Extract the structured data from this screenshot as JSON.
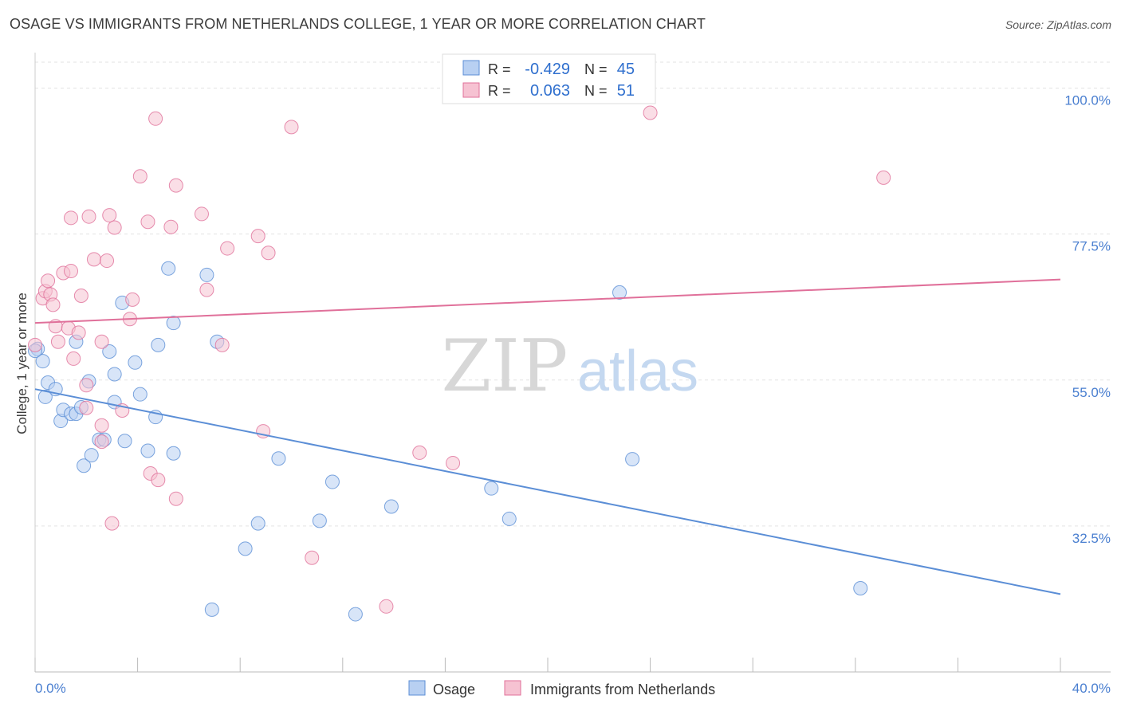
{
  "header": {
    "title": "OSAGE VS IMMIGRANTS FROM NETHERLANDS COLLEGE, 1 YEAR OR MORE CORRELATION CHART",
    "source": "Source: ZipAtlas.com"
  },
  "watermark": {
    "zip": "ZIP",
    "atlas": "atlas"
  },
  "legend_box": {
    "rows": [
      {
        "r_label": "R =",
        "r_value": "-0.429",
        "n_label": "N =",
        "n_value": "45"
      },
      {
        "r_label": "R =",
        "r_value": "0.063",
        "n_label": "N =",
        "n_value": "51"
      }
    ]
  },
  "chart_data": {
    "type": "scatter",
    "title": "OSAGE VS IMMIGRANTS FROM NETHERLANDS COLLEGE, 1 YEAR OR MORE CORRELATION CHART",
    "xlabel": "",
    "ylabel": "College, 1 year or more",
    "xlim": [
      0,
      40
    ],
    "ylim": [
      10,
      104
    ],
    "x_tick_labels": [
      "0.0%",
      "40.0%"
    ],
    "y_ticks": [
      32.5,
      55.0,
      77.5,
      100.0
    ],
    "y_tick_labels": [
      "32.5%",
      "55.0%",
      "77.5%",
      "100.0%"
    ],
    "grid": true,
    "legend_position": "bottom",
    "series": [
      {
        "name": "Osage",
        "color": "#5b8ed6",
        "fill": "#b8d0f2",
        "r": -0.429,
        "n": 45,
        "trend": {
          "x": [
            0,
            40
          ],
          "y": [
            53.6,
            22.0
          ]
        },
        "points": [
          [
            0.1,
            59.8
          ],
          [
            0.3,
            57.9
          ],
          [
            0.5,
            54.6
          ],
          [
            0.4,
            52.4
          ],
          [
            0.8,
            53.6
          ],
          [
            1.0,
            48.7
          ],
          [
            1.1,
            50.4
          ],
          [
            1.4,
            49.8
          ],
          [
            1.6,
            49.8
          ],
          [
            1.8,
            50.8
          ],
          [
            1.9,
            41.8
          ],
          [
            2.2,
            43.4
          ],
          [
            2.5,
            45.8
          ],
          [
            2.7,
            45.8
          ],
          [
            2.1,
            54.8
          ],
          [
            1.6,
            60.9
          ],
          [
            2.9,
            59.4
          ],
          [
            3.1,
            51.6
          ],
          [
            3.1,
            55.9
          ],
          [
            3.4,
            66.9
          ],
          [
            3.5,
            45.6
          ],
          [
            3.9,
            57.7
          ],
          [
            4.1,
            52.8
          ],
          [
            4.4,
            44.1
          ],
          [
            4.7,
            49.3
          ],
          [
            4.8,
            60.4
          ],
          [
            5.2,
            72.2
          ],
          [
            5.4,
            43.7
          ],
          [
            5.4,
            63.8
          ],
          [
            6.7,
            71.2
          ],
          [
            7.1,
            60.9
          ],
          [
            6.9,
            19.6
          ],
          [
            8.2,
            29.0
          ],
          [
            8.7,
            32.9
          ],
          [
            9.5,
            42.9
          ],
          [
            11.1,
            33.3
          ],
          [
            11.6,
            39.3
          ],
          [
            12.5,
            18.9
          ],
          [
            13.9,
            35.5
          ],
          [
            17.8,
            38.3
          ],
          [
            18.5,
            33.6
          ],
          [
            22.8,
            68.5
          ],
          [
            23.3,
            42.8
          ],
          [
            32.2,
            22.9
          ],
          [
            0.0,
            59.5
          ]
        ]
      },
      {
        "name": "Immigrants from Netherlands",
        "color": "#e0709a",
        "fill": "#f6c2d2",
        "r": 0.063,
        "n": 51,
        "trend": {
          "x": [
            0,
            40
          ],
          "y": [
            63.8,
            70.5
          ]
        },
        "points": [
          [
            0.0,
            60.4
          ],
          [
            0.3,
            67.6
          ],
          [
            0.4,
            68.7
          ],
          [
            0.5,
            70.3
          ],
          [
            0.6,
            68.2
          ],
          [
            0.7,
            66.6
          ],
          [
            0.8,
            63.3
          ],
          [
            0.9,
            60.9
          ],
          [
            1.1,
            71.5
          ],
          [
            1.3,
            63.0
          ],
          [
            1.4,
            71.8
          ],
          [
            1.5,
            58.3
          ],
          [
            1.7,
            62.3
          ],
          [
            1.8,
            68.0
          ],
          [
            2.0,
            50.7
          ],
          [
            2.0,
            54.2
          ],
          [
            1.4,
            80.0
          ],
          [
            2.1,
            80.2
          ],
          [
            2.3,
            73.6
          ],
          [
            2.6,
            60.9
          ],
          [
            2.6,
            45.5
          ],
          [
            2.6,
            48.0
          ],
          [
            2.8,
            73.4
          ],
          [
            2.9,
            80.4
          ],
          [
            3.0,
            32.9
          ],
          [
            3.1,
            78.5
          ],
          [
            3.4,
            50.3
          ],
          [
            3.7,
            64.4
          ],
          [
            3.8,
            67.4
          ],
          [
            4.1,
            86.4
          ],
          [
            4.4,
            79.4
          ],
          [
            4.5,
            40.6
          ],
          [
            4.7,
            95.3
          ],
          [
            4.8,
            39.6
          ],
          [
            5.3,
            78.6
          ],
          [
            5.5,
            36.7
          ],
          [
            5.5,
            85.0
          ],
          [
            6.5,
            80.6
          ],
          [
            6.7,
            68.9
          ],
          [
            7.3,
            60.4
          ],
          [
            7.5,
            75.3
          ],
          [
            8.7,
            77.2
          ],
          [
            8.9,
            47.1
          ],
          [
            9.1,
            74.6
          ],
          [
            10.0,
            94.0
          ],
          [
            10.8,
            27.6
          ],
          [
            13.7,
            20.1
          ],
          [
            15.0,
            43.8
          ],
          [
            16.3,
            42.2
          ],
          [
            24.0,
            96.2
          ],
          [
            33.1,
            86.2
          ]
        ]
      }
    ]
  }
}
